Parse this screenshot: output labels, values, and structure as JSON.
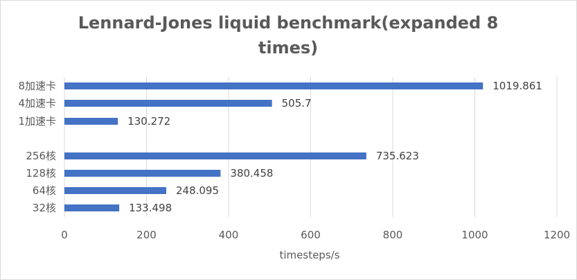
{
  "chart_data": {
    "type": "bar",
    "orientation": "horizontal",
    "title_lines": [
      "Lennard-Jones liquid benchmark(expanded 8",
      "times)"
    ],
    "xlabel": "timesteps/s",
    "ylabel": "",
    "xlim": [
      0,
      1200
    ],
    "x_ticks": [
      "0",
      "200",
      "400",
      "600",
      "800",
      "1000",
      "1200"
    ],
    "grid": "vertical",
    "legend": "none",
    "bar_color": "#4472C4",
    "categories": [
      "8加速卡",
      "4加速卡",
      "1加速卡",
      "",
      "256核",
      "128核",
      "64核",
      "32核"
    ],
    "values": [
      1019.861,
      505.7,
      130.272,
      null,
      735.623,
      380.458,
      248.095,
      133.498
    ],
    "value_labels": [
      "1019.861",
      "505.7",
      "130.272",
      "",
      "735.623",
      "380.458",
      "248.095",
      "133.498"
    ]
  }
}
